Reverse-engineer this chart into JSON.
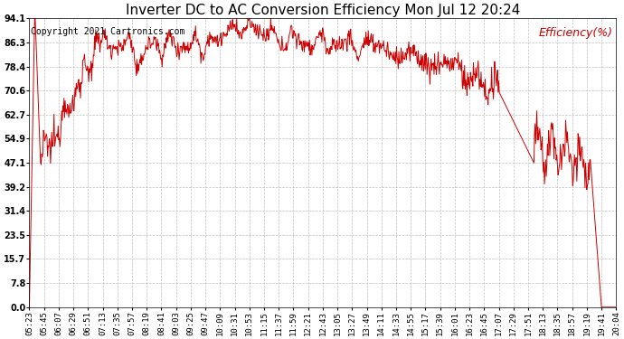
{
  "title": "Inverter DC to AC Conversion Efficiency Mon Jul 12 20:24",
  "copyright": "Copyright 2021 Cartronics.com",
  "legend_label": "Efficiency(%)",
  "line_color": "#cc0000",
  "background_color": "#ffffff",
  "grid_color": "#b0b0b0",
  "yticks": [
    0.0,
    7.8,
    15.7,
    23.5,
    31.4,
    39.2,
    47.1,
    54.9,
    62.7,
    70.6,
    78.4,
    86.3,
    94.1
  ],
  "xtick_labels": [
    "05:23",
    "05:45",
    "06:07",
    "06:29",
    "06:51",
    "07:13",
    "07:35",
    "07:57",
    "08:19",
    "08:41",
    "09:03",
    "09:25",
    "09:47",
    "10:09",
    "10:31",
    "10:53",
    "11:15",
    "11:37",
    "11:59",
    "12:21",
    "12:43",
    "13:05",
    "13:27",
    "13:49",
    "14:11",
    "14:33",
    "14:55",
    "15:17",
    "15:39",
    "16:01",
    "16:23",
    "16:45",
    "17:07",
    "17:29",
    "17:51",
    "18:13",
    "18:35",
    "18:57",
    "19:19",
    "19:41",
    "20:04"
  ],
  "ymin": 0.0,
  "ymax": 94.1,
  "title_fontsize": 11,
  "copyright_fontsize": 7,
  "legend_fontsize": 9,
  "tick_fontsize": 6.5,
  "ytick_fontsize": 7
}
